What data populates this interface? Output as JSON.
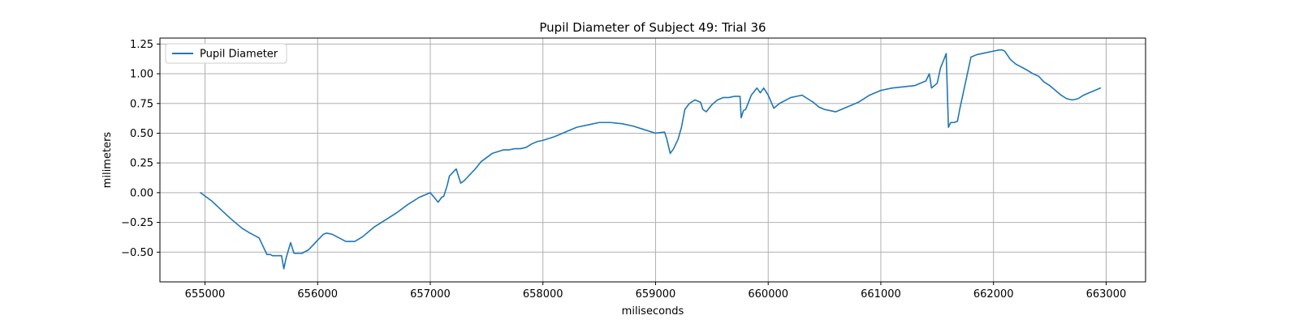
{
  "chart_data": {
    "type": "line",
    "title": "Pupil Diameter of Subject 49: Trial 36",
    "xlabel": "miliseconds",
    "ylabel": "milimeters",
    "xlim": [
      654600,
      663350
    ],
    "ylim": [
      -0.75,
      1.3
    ],
    "xticks": [
      655000,
      656000,
      657000,
      658000,
      659000,
      660000,
      661000,
      662000,
      663000
    ],
    "yticks": [
      -0.5,
      -0.25,
      0.0,
      0.25,
      0.5,
      0.75,
      1.0,
      1.25
    ],
    "xtick_labels": [
      "655000",
      "656000",
      "657000",
      "658000",
      "659000",
      "660000",
      "661000",
      "662000",
      "663000"
    ],
    "ytick_labels": [
      "−0.50",
      "−0.25",
      "0.00",
      "0.25",
      "0.50",
      "0.75",
      "1.00",
      "1.25"
    ],
    "grid": true,
    "legend_position": "top-left",
    "colors": {
      "series": "#1f77b4",
      "grid": "#b0b0b0",
      "axes": "#000000",
      "legend_border": "#cccccc"
    },
    "series": [
      {
        "name": "Pupil Diameter",
        "x": [
          654960,
          655060,
          655150,
          655230,
          655330,
          655400,
          655480,
          655550,
          655580,
          655600,
          655680,
          655700,
          655720,
          655760,
          655790,
          655860,
          655920,
          656000,
          656050,
          656080,
          656130,
          656170,
          656250,
          656330,
          656400,
          656500,
          656600,
          656700,
          656800,
          656900,
          657000,
          657070,
          657100,
          657120,
          657150,
          657170,
          657200,
          657230,
          657270,
          657300,
          657320,
          657350,
          657400,
          657450,
          657550,
          657650,
          657700,
          657750,
          657800,
          657850,
          657900,
          657950,
          658000,
          658100,
          658200,
          658300,
          658400,
          658500,
          658600,
          658700,
          658800,
          658900,
          659000,
          659080,
          659100,
          659130,
          659160,
          659200,
          659230,
          659260,
          659300,
          659350,
          659400,
          659420,
          659450,
          659500,
          659550,
          659600,
          659650,
          659700,
          659750,
          659760,
          659780,
          659800,
          659850,
          659900,
          659930,
          659960,
          660000,
          660050,
          660100,
          660200,
          660300,
          660350,
          660400,
          660450,
          660500,
          660550,
          660600,
          660700,
          660800,
          660900,
          661000,
          661100,
          661200,
          661300,
          661400,
          661430,
          661450,
          661500,
          661530,
          661560,
          661580,
          661600,
          661620,
          661650,
          661680,
          661700,
          661800,
          661850,
          661900,
          662000,
          662050,
          662080,
          662100,
          662150,
          662200,
          662300,
          662350,
          662400,
          662450,
          662500,
          662550,
          662600,
          662650,
          662700,
          662750,
          662800,
          662850,
          662900,
          662950
        ],
        "y": [
          0.0,
          -0.07,
          -0.15,
          -0.22,
          -0.3,
          -0.34,
          -0.38,
          -0.52,
          -0.52,
          -0.53,
          -0.53,
          -0.64,
          -0.55,
          -0.42,
          -0.51,
          -0.51,
          -0.48,
          -0.4,
          -0.35,
          -0.34,
          -0.35,
          -0.37,
          -0.41,
          -0.41,
          -0.37,
          -0.29,
          -0.23,
          -0.17,
          -0.1,
          -0.04,
          0.0,
          -0.08,
          -0.04,
          -0.03,
          0.06,
          0.14,
          0.17,
          0.2,
          0.08,
          0.1,
          0.12,
          0.15,
          0.2,
          0.26,
          0.33,
          0.36,
          0.36,
          0.37,
          0.37,
          0.38,
          0.41,
          0.43,
          0.44,
          0.47,
          0.51,
          0.55,
          0.57,
          0.59,
          0.59,
          0.58,
          0.56,
          0.53,
          0.5,
          0.51,
          0.45,
          0.33,
          0.37,
          0.45,
          0.55,
          0.7,
          0.75,
          0.78,
          0.76,
          0.7,
          0.68,
          0.74,
          0.78,
          0.8,
          0.8,
          0.81,
          0.81,
          0.63,
          0.69,
          0.7,
          0.82,
          0.88,
          0.84,
          0.88,
          0.82,
          0.71,
          0.75,
          0.8,
          0.82,
          0.79,
          0.76,
          0.72,
          0.7,
          0.69,
          0.68,
          0.72,
          0.76,
          0.82,
          0.86,
          0.88,
          0.89,
          0.9,
          0.94,
          1.0,
          0.88,
          0.92,
          1.05,
          1.12,
          1.17,
          0.55,
          0.59,
          0.59,
          0.6,
          0.7,
          1.14,
          1.16,
          1.17,
          1.19,
          1.2,
          1.2,
          1.19,
          1.12,
          1.08,
          1.03,
          1.0,
          0.98,
          0.93,
          0.9,
          0.86,
          0.82,
          0.79,
          0.78,
          0.79,
          0.82,
          0.84,
          0.86,
          0.88
        ]
      }
    ]
  }
}
